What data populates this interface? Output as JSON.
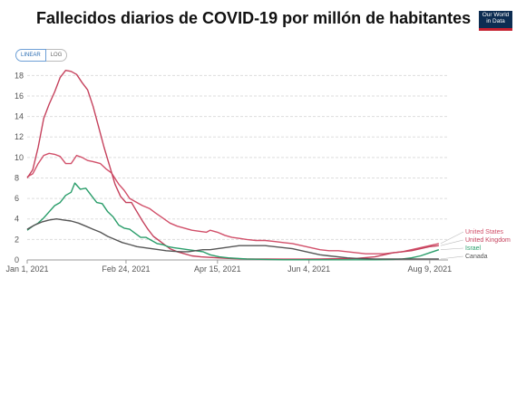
{
  "title": "Fallecidos diarios de COVID-19 por millón de habitantes",
  "logo": {
    "line1": "Our World",
    "line2": "in Data"
  },
  "toggle": {
    "linear": "LINEAR",
    "log": "LOG"
  },
  "chart_data": {
    "type": "line",
    "title": "Fallecidos diarios de COVID-19 por millón de habitantes",
    "xlabel": "",
    "ylabel": "",
    "x_ticks": [
      {
        "label": "Jan 1, 2021",
        "day": 0
      },
      {
        "label": "Feb 24, 2021",
        "day": 54
      },
      {
        "label": "Apr 15, 2021",
        "day": 104
      },
      {
        "label": "Jun 4, 2021",
        "day": 154
      },
      {
        "label": "Aug 9, 2021",
        "day": 220
      }
    ],
    "xlim": [
      0,
      230
    ],
    "ylim": [
      0,
      19
    ],
    "y_ticks": [
      0,
      2,
      4,
      6,
      8,
      10,
      12,
      14,
      16,
      18
    ],
    "grid": true,
    "legend_position": "right",
    "series": [
      {
        "name": "United States",
        "color": "#d14f69",
        "points": [
          [
            0,
            8.1
          ],
          [
            3,
            8.4
          ],
          [
            6,
            9.4
          ],
          [
            9,
            10.2
          ],
          [
            12,
            10.4
          ],
          [
            15,
            10.3
          ],
          [
            18,
            10.1
          ],
          [
            21,
            9.4
          ],
          [
            24,
            9.4
          ],
          [
            27,
            10.2
          ],
          [
            30,
            10.0
          ],
          [
            33,
            9.7
          ],
          [
            36,
            9.6
          ],
          [
            40,
            9.4
          ],
          [
            43,
            8.9
          ],
          [
            46,
            8.5
          ],
          [
            50,
            7.4
          ],
          [
            53,
            6.8
          ],
          [
            56,
            6.0
          ],
          [
            60,
            5.6
          ],
          [
            63,
            5.3
          ],
          [
            67,
            5.0
          ],
          [
            70,
            4.6
          ],
          [
            74,
            4.1
          ],
          [
            78,
            3.6
          ],
          [
            82,
            3.3
          ],
          [
            86,
            3.1
          ],
          [
            90,
            2.9
          ],
          [
            94,
            2.8
          ],
          [
            98,
            2.7
          ],
          [
            100,
            2.9
          ],
          [
            104,
            2.7
          ],
          [
            108,
            2.4
          ],
          [
            112,
            2.2
          ],
          [
            116,
            2.1
          ],
          [
            120,
            2.0
          ],
          [
            125,
            1.9
          ],
          [
            130,
            1.9
          ],
          [
            135,
            1.8
          ],
          [
            140,
            1.7
          ],
          [
            145,
            1.6
          ],
          [
            150,
            1.4
          ],
          [
            155,
            1.2
          ],
          [
            160,
            1.0
          ],
          [
            165,
            0.9
          ],
          [
            170,
            0.9
          ],
          [
            175,
            0.8
          ],
          [
            180,
            0.7
          ],
          [
            185,
            0.6
          ],
          [
            190,
            0.6
          ],
          [
            195,
            0.6
          ],
          [
            200,
            0.7
          ],
          [
            205,
            0.8
          ],
          [
            210,
            1.0
          ],
          [
            215,
            1.2
          ],
          [
            220,
            1.4
          ],
          [
            225,
            1.6
          ]
        ]
      },
      {
        "name": "United Kingdom",
        "color": "#c5415c",
        "points": [
          [
            0,
            8.0
          ],
          [
            3,
            8.8
          ],
          [
            6,
            11.0
          ],
          [
            9,
            13.8
          ],
          [
            12,
            15.2
          ],
          [
            15,
            16.4
          ],
          [
            18,
            17.8
          ],
          [
            21,
            18.5
          ],
          [
            24,
            18.4
          ],
          [
            27,
            18.1
          ],
          [
            30,
            17.3
          ],
          [
            33,
            16.6
          ],
          [
            36,
            15.0
          ],
          [
            39,
            13.0
          ],
          [
            42,
            11.0
          ],
          [
            45,
            9.2
          ],
          [
            48,
            7.4
          ],
          [
            51,
            6.2
          ],
          [
            54,
            5.6
          ],
          [
            57,
            5.6
          ],
          [
            60,
            4.7
          ],
          [
            63,
            3.8
          ],
          [
            66,
            3.0
          ],
          [
            69,
            2.3
          ],
          [
            72,
            1.9
          ],
          [
            75,
            1.5
          ],
          [
            78,
            1.1
          ],
          [
            82,
            0.8
          ],
          [
            86,
            0.6
          ],
          [
            90,
            0.4
          ],
          [
            95,
            0.3
          ],
          [
            100,
            0.25
          ],
          [
            110,
            0.15
          ],
          [
            120,
            0.1
          ],
          [
            130,
            0.1
          ],
          [
            140,
            0.08
          ],
          [
            150,
            0.08
          ],
          [
            160,
            0.1
          ],
          [
            170,
            0.12
          ],
          [
            180,
            0.15
          ],
          [
            190,
            0.3
          ],
          [
            195,
            0.5
          ],
          [
            200,
            0.7
          ],
          [
            205,
            0.8
          ],
          [
            210,
            0.9
          ],
          [
            215,
            1.1
          ],
          [
            220,
            1.3
          ],
          [
            225,
            1.4
          ]
        ]
      },
      {
        "name": "Israel",
        "color": "#2a9d6a",
        "points": [
          [
            0,
            2.9
          ],
          [
            3,
            3.3
          ],
          [
            6,
            3.6
          ],
          [
            9,
            4.1
          ],
          [
            12,
            4.7
          ],
          [
            15,
            5.3
          ],
          [
            18,
            5.6
          ],
          [
            21,
            6.3
          ],
          [
            24,
            6.6
          ],
          [
            26,
            7.5
          ],
          [
            29,
            6.9
          ],
          [
            32,
            7.0
          ],
          [
            35,
            6.3
          ],
          [
            38,
            5.6
          ],
          [
            41,
            5.5
          ],
          [
            44,
            4.7
          ],
          [
            47,
            4.2
          ],
          [
            50,
            3.4
          ],
          [
            53,
            3.1
          ],
          [
            56,
            3.0
          ],
          [
            59,
            2.6
          ],
          [
            62,
            2.2
          ],
          [
            65,
            2.2
          ],
          [
            68,
            1.9
          ],
          [
            71,
            1.6
          ],
          [
            74,
            1.5
          ],
          [
            77,
            1.3
          ],
          [
            80,
            1.2
          ],
          [
            84,
            1.1
          ],
          [
            88,
            1.0
          ],
          [
            92,
            0.9
          ],
          [
            96,
            0.8
          ],
          [
            100,
            0.5
          ],
          [
            105,
            0.3
          ],
          [
            110,
            0.2
          ],
          [
            120,
            0.1
          ],
          [
            130,
            0.05
          ],
          [
            140,
            0.02
          ],
          [
            150,
            0.02
          ],
          [
            160,
            0.02
          ],
          [
            170,
            0.02
          ],
          [
            180,
            0.02
          ],
          [
            190,
            0.02
          ],
          [
            200,
            0.05
          ],
          [
            205,
            0.1
          ],
          [
            210,
            0.2
          ],
          [
            215,
            0.4
          ],
          [
            220,
            0.7
          ],
          [
            225,
            1.0
          ]
        ]
      },
      {
        "name": "Canada",
        "color": "#555555",
        "points": [
          [
            0,
            3.0
          ],
          [
            4,
            3.4
          ],
          [
            8,
            3.7
          ],
          [
            12,
            3.9
          ],
          [
            16,
            4.0
          ],
          [
            20,
            3.9
          ],
          [
            24,
            3.8
          ],
          [
            28,
            3.6
          ],
          [
            32,
            3.3
          ],
          [
            36,
            3.0
          ],
          [
            40,
            2.7
          ],
          [
            44,
            2.3
          ],
          [
            48,
            2.0
          ],
          [
            52,
            1.7
          ],
          [
            56,
            1.5
          ],
          [
            60,
            1.3
          ],
          [
            64,
            1.2
          ],
          [
            68,
            1.1
          ],
          [
            72,
            1.0
          ],
          [
            76,
            0.9
          ],
          [
            80,
            0.85
          ],
          [
            84,
            0.8
          ],
          [
            88,
            0.8
          ],
          [
            92,
            0.9
          ],
          [
            96,
            1.0
          ],
          [
            100,
            1.0
          ],
          [
            104,
            1.1
          ],
          [
            108,
            1.2
          ],
          [
            112,
            1.3
          ],
          [
            116,
            1.4
          ],
          [
            120,
            1.4
          ],
          [
            125,
            1.4
          ],
          [
            130,
            1.4
          ],
          [
            135,
            1.3
          ],
          [
            140,
            1.2
          ],
          [
            145,
            1.1
          ],
          [
            150,
            0.9
          ],
          [
            155,
            0.7
          ],
          [
            160,
            0.5
          ],
          [
            165,
            0.4
          ],
          [
            170,
            0.3
          ],
          [
            175,
            0.2
          ],
          [
            180,
            0.15
          ],
          [
            190,
            0.1
          ],
          [
            200,
            0.1
          ],
          [
            210,
            0.1
          ],
          [
            220,
            0.1
          ],
          [
            225,
            0.1
          ]
        ]
      }
    ]
  }
}
